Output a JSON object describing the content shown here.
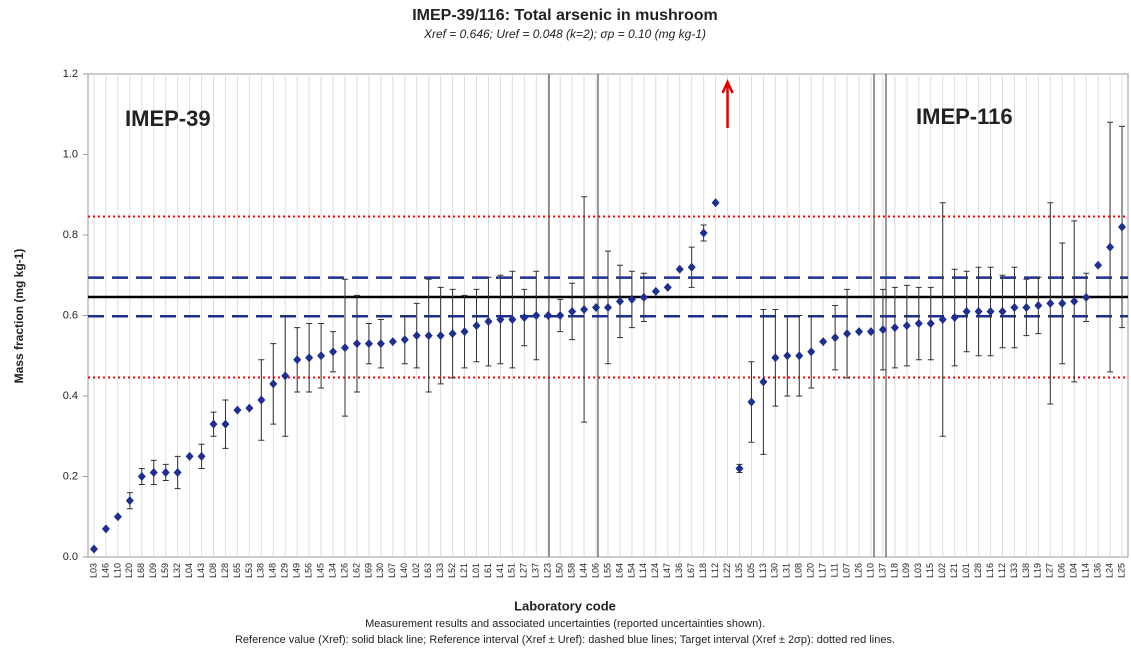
{
  "chart_data": {
    "type": "scatter",
    "title": "IMEP-39/116: Total arsenic in mushroom",
    "subtitle": "Xref = 0.646; Uref = 0.048 (k=2); σp = 0.10 (mg kg-1)",
    "y_label": "Mass fraction (mg kg-1)",
    "x_label": "Laboratory code",
    "notes": [
      "Measurement results and associated uncertainties (reported uncertainties shown).",
      "Reference value (Xref): solid black line; Reference interval (Xref ± Uref): dashed blue lines; Target interval (Xref ± 2σp): dotted red lines."
    ],
    "annotations": [
      "IMEP-39",
      "IMEP-116"
    ],
    "categories": [
      "L03",
      "L46",
      "L10",
      "L20",
      "L68",
      "L09",
      "L59",
      "L32",
      "L04",
      "L43",
      "L08",
      "L28",
      "L65",
      "L53",
      "L38",
      "L48",
      "L29",
      "L49",
      "L56",
      "L45",
      "L34",
      "L26",
      "L62",
      "L69",
      "L30",
      "L07",
      "L40",
      "L02",
      "L63",
      "L33",
      "L52",
      "L21",
      "L01",
      "L61",
      "L41",
      "L51",
      "L27",
      "L37",
      "L23",
      "L50",
      "L58",
      "L44",
      "L06",
      "L55",
      "L64",
      "L54",
      "L14",
      "L24",
      "L47",
      "L36",
      "L67",
      "L18",
      "L12",
      "L22",
      "L35",
      "L05",
      "L13",
      "L30",
      "L31",
      "L08",
      "L20",
      "L17",
      "L11",
      "L07",
      "L26",
      "L10",
      "L37",
      "L18",
      "L09",
      "L03",
      "L15",
      "L02",
      "L21",
      "L01",
      "L28",
      "L16",
      "L12",
      "L33",
      "L38",
      "L19",
      "L27",
      "L06",
      "L04",
      "L14",
      "L36",
      "L24",
      "L25"
    ],
    "series": [
      {
        "name": "Measurement results",
        "color": "#1f2f8f",
        "values": [
          0.02,
          0.07,
          0.1,
          0.14,
          0.2,
          0.21,
          0.21,
          0.21,
          0.25,
          0.25,
          0.33,
          0.33,
          0.365,
          0.37,
          0.39,
          0.43,
          0.45,
          0.49,
          0.495,
          0.5,
          0.51,
          0.52,
          0.53,
          0.53,
          0.53,
          0.535,
          0.54,
          0.55,
          0.55,
          0.55,
          0.555,
          0.56,
          0.575,
          0.585,
          0.59,
          0.59,
          0.595,
          0.6,
          0.6,
          0.6,
          0.61,
          0.615,
          0.62,
          0.62,
          0.635,
          0.64,
          0.645,
          0.66,
          0.67,
          0.715,
          0.72,
          0.805,
          0.88,
          null,
          0.22,
          0.385,
          0.435,
          0.495,
          0.5,
          0.5,
          0.51,
          0.535,
          0.545,
          0.555,
          0.56,
          0.56,
          0.565,
          0.57,
          0.575,
          0.58,
          0.58,
          0.59,
          0.595,
          0.61,
          0.61,
          0.61,
          0.61,
          0.62,
          0.62,
          0.625,
          0.63,
          0.63,
          0.635,
          0.645,
          0.725,
          0.77,
          0.82
        ],
        "errors": [
          null,
          null,
          null,
          0.02,
          0.02,
          0.03,
          0.02,
          0.04,
          null,
          0.03,
          0.03,
          0.06,
          null,
          null,
          0.1,
          0.1,
          0.15,
          0.08,
          0.085,
          0.08,
          0.05,
          0.17,
          0.12,
          0.05,
          0.06,
          null,
          0.06,
          0.08,
          0.14,
          0.12,
          0.11,
          0.09,
          0.09,
          0.11,
          0.11,
          0.12,
          0.07,
          0.11,
          null,
          0.04,
          0.07,
          0.28,
          null,
          0.14,
          0.09,
          0.07,
          0.06,
          null,
          null,
          null,
          0.05,
          0.02,
          null,
          null,
          0.01,
          0.1,
          0.18,
          0.12,
          0.1,
          0.1,
          0.09,
          null,
          0.08,
          0.11,
          null,
          null,
          0.1,
          0.1,
          0.1,
          0.09,
          0.09,
          0.29,
          0.12,
          0.1,
          0.11,
          0.11,
          0.09,
          0.1,
          0.07,
          0.07,
          0.25,
          0.15,
          0.2,
          0.06,
          null,
          0.31,
          0.25
        ]
      }
    ],
    "reference_lines": [
      {
        "value": 0.646,
        "color": "#000000",
        "style": "solid"
      },
      {
        "value": 0.598,
        "color": "#1f2f8f",
        "style": "dashed"
      },
      {
        "value": 0.694,
        "color": "#1f2f8f",
        "style": "dashed"
      },
      {
        "value": 0.446,
        "color": "#ff0000",
        "style": "dotted"
      },
      {
        "value": 0.846,
        "color": "#ff0000",
        "style": "dotted"
      }
    ],
    "ylim": [
      0,
      1.2
    ],
    "yticks": [
      {
        "value": 0,
        "label": "0.0"
      },
      0.2,
      0.4,
      0.6,
      0.8,
      {
        "value": 1,
        "label": "1.0"
      },
      1.2
    ],
    "grid": true
  }
}
